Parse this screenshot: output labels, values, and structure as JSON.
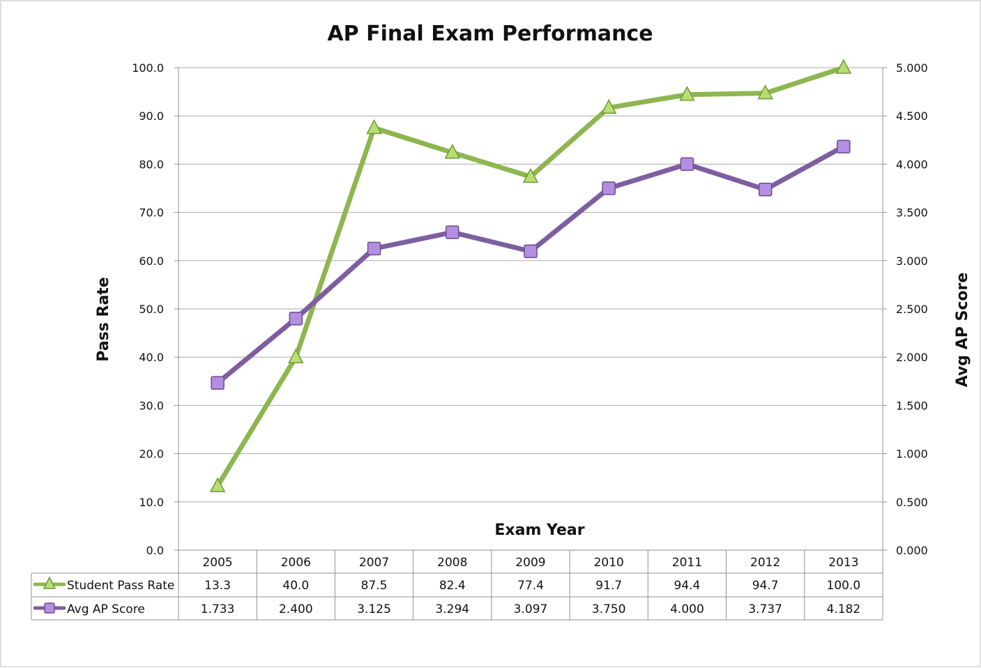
{
  "chart_data": {
    "type": "line",
    "title": "AP Final Exam Performance",
    "xlabel": "Exam Year",
    "ylabel_left": "Pass Rate",
    "ylabel_right": "Avg AP Score",
    "categories": [
      "2005",
      "2006",
      "2007",
      "2008",
      "2009",
      "2010",
      "2011",
      "2012",
      "2013"
    ],
    "y_left": {
      "min": 0,
      "max": 100,
      "step": 10,
      "ticks": [
        "0.0",
        "10.0",
        "20.0",
        "30.0",
        "40.0",
        "50.0",
        "60.0",
        "70.0",
        "80.0",
        "90.0",
        "100.0"
      ]
    },
    "y_right": {
      "min": 0,
      "max": 5,
      "step": 0.5,
      "ticks": [
        "0.000",
        "0.500",
        "1.000",
        "1.500",
        "2.000",
        "2.500",
        "3.000",
        "3.500",
        "4.000",
        "4.500",
        "5.000"
      ]
    },
    "grid": true,
    "legend": "data-table",
    "series": [
      {
        "name": "Student Pass Rate",
        "axis": "left",
        "color": "#8DB650",
        "marker": "triangle",
        "values": [
          13.3,
          40.0,
          87.5,
          82.4,
          77.4,
          91.7,
          94.4,
          94.7,
          100.0
        ],
        "labels": [
          "13.3",
          "40.0",
          "87.5",
          "82.4",
          "77.4",
          "91.7",
          "94.4",
          "94.7",
          "100.0"
        ]
      },
      {
        "name": "Avg AP Score",
        "axis": "right",
        "color": "#7E5EA0",
        "marker": "square",
        "values": [
          1.733,
          2.4,
          3.125,
          3.294,
          3.097,
          3.75,
          4.0,
          3.737,
          4.182
        ],
        "labels": [
          "1.733",
          "2.400",
          "3.125",
          "3.294",
          "3.097",
          "3.750",
          "4.000",
          "3.737",
          "4.182"
        ]
      }
    ]
  }
}
